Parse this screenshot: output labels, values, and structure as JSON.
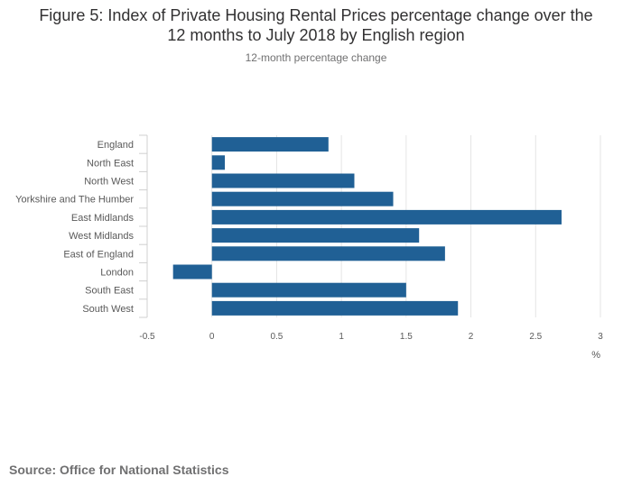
{
  "chart_data": {
    "type": "bar",
    "orientation": "horizontal",
    "title": "Figure 5: Index of Private Housing Rental Prices percentage change over the 12 months to July 2018 by English region",
    "title_lines": [
      "Figure 5: Index of Private Housing Rental Prices percentage change over the",
      "12 months to July 2018 by English region"
    ],
    "subtitle": "12-month percentage change",
    "categories": [
      "England",
      "North East",
      "North West",
      "Yorkshire and The Humber",
      "East Midlands",
      "West Midlands",
      "East of England",
      "London",
      "South East",
      "South West"
    ],
    "values": [
      0.9,
      0.1,
      1.1,
      1.4,
      2.7,
      1.6,
      1.8,
      -0.3,
      1.5,
      1.9
    ],
    "xlim": [
      -0.5,
      3
    ],
    "xticks": [
      -0.5,
      0,
      0.5,
      1,
      1.5,
      2,
      2.5,
      3
    ],
    "xtick_labels": [
      "-0.5",
      "0",
      "0.5",
      "1",
      "1.5",
      "2",
      "2.5",
      "3"
    ],
    "xlabel": "%",
    "ylabel": "",
    "bar_color": "#206095",
    "grid": true
  },
  "source": "Source: Office for National Statistics"
}
